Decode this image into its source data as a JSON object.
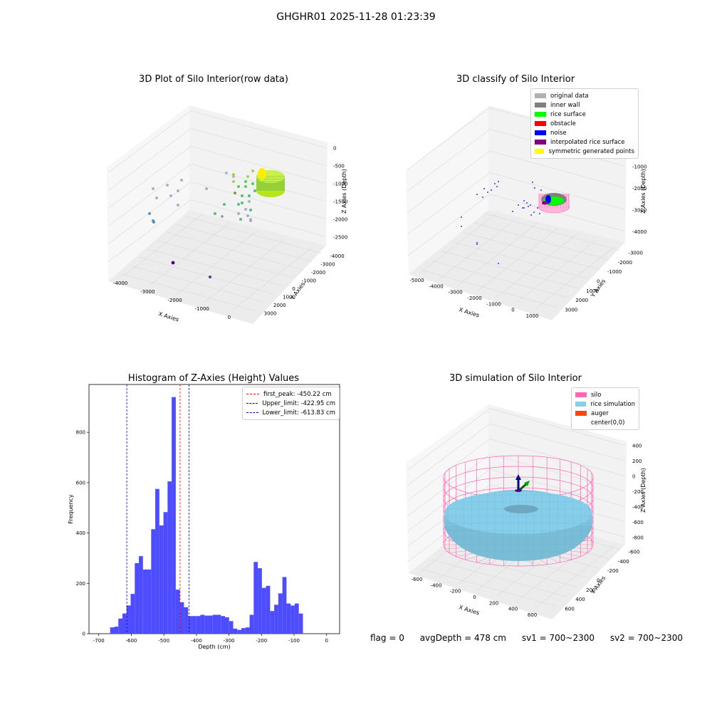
{
  "suptitle": "GHGHR01 2025-11-28 01:23:39",
  "footer": {
    "flag": "flag = 0",
    "avg": "avgDepth = 478 cm",
    "sv1": "sv1 = 700~2300",
    "sv2": "sv2 = 700~2300"
  },
  "colors": {
    "hist_bar": "#4d4dff",
    "peak_line": "#ff0000",
    "limit_line": "#0000cc",
    "silo": "#ff69b4",
    "rice": "#87ceeb",
    "auger": "#ff4500"
  },
  "chart_data": [
    {
      "type": "scatter",
      "title": "3D Plot of Silo Interior(row data)",
      "xlabel": "X Axies",
      "ylabel": "Y Axies",
      "zlabel": "Z Axies (Depth)",
      "xticks": [
        "-4000",
        "-3000",
        "-2000",
        "-1000",
        "0"
      ],
      "yticks": [
        "3000",
        "2000",
        "1000",
        "0",
        "-1000",
        "-2000",
        "-3000",
        "-4000"
      ],
      "zticks": [
        "0",
        "-500",
        "-1000",
        "-1500",
        "-2000",
        "-2500"
      ]
    },
    {
      "type": "scatter",
      "title": "3D classify of Silo Interior",
      "xlabel": "X Axies",
      "ylabel": "Y Axies",
      "zlabel": "Z Axies (Depth)",
      "xticks": [
        "-5000",
        "-4000",
        "-3000",
        "-2000",
        "-1000",
        "0",
        "1000"
      ],
      "yticks": [
        "3000",
        "2000",
        "1000",
        "0",
        "-1000",
        "-2000",
        "-3000"
      ],
      "zticks": [
        "1000",
        "0",
        "-1000",
        "-2000",
        "-3000",
        "-4000"
      ],
      "zticks_visible": [
        "0",
        "-1000",
        "-2000",
        "-3000",
        "-4000"
      ],
      "legend": [
        {
          "label": "original data",
          "color": "#b0b0b0"
        },
        {
          "label": "inner wall",
          "color": "#808080"
        },
        {
          "label": "rice surface",
          "color": "#00ff00"
        },
        {
          "label": "obstacle",
          "color": "#ff0000"
        },
        {
          "label": "noise",
          "color": "#0000ff"
        },
        {
          "label": "interpolated rice surface",
          "color": "#800080"
        },
        {
          "label": "symmetric generated points",
          "color": "#ffff00"
        }
      ]
    },
    {
      "type": "bar",
      "title": "Histogram of Z-Axies (Height) Values",
      "xlabel": "Depth (cm)",
      "ylabel": "Frequency",
      "xlim": [
        -730,
        40
      ],
      "ylim": [
        0,
        990
      ],
      "xticks": [
        -700,
        -600,
        -500,
        -400,
        -300,
        -200,
        -100,
        0
      ],
      "yticks": [
        0,
        200,
        400,
        600,
        800
      ],
      "bin_width": 12.6,
      "bin_start": -665,
      "values": [
        25,
        28,
        60,
        80,
        112,
        158,
        280,
        308,
        255,
        255,
        415,
        575,
        430,
        483,
        605,
        940,
        175,
        125,
        105,
        70,
        70,
        70,
        75,
        72,
        72,
        75,
        75,
        70,
        65,
        50,
        20,
        15,
        22,
        25,
        75,
        285,
        260,
        182,
        190,
        90,
        115,
        160,
        225,
        120,
        112,
        120,
        80
      ],
      "vlines": [
        {
          "label": "first_peak: -450.22 cm",
          "x": -450.22,
          "color": "#ff0000"
        },
        {
          "label": "Upper_limit: -422.95 cm",
          "x": -422.95,
          "color": "#0000cc"
        },
        {
          "label": "Lower_limit: -613.83 cm",
          "x": -613.83,
          "color": "#0000cc"
        }
      ]
    },
    {
      "type": "scatter",
      "title": "3D simulation of Silo Interior",
      "xlabel": "X Axies",
      "ylabel": "Y Axies",
      "zlabel": "Z Axies (Depth)",
      "xticks": [
        "-600",
        "-400",
        "-200",
        "0",
        "200",
        "400",
        "600"
      ],
      "yticks": [
        "600",
        "400",
        "200",
        "0",
        "-200",
        "-400",
        "-600"
      ],
      "zticks": [
        "400",
        "200",
        "0",
        "-200",
        "-400",
        "-600",
        "-800"
      ],
      "legend": [
        {
          "label": "silo",
          "color": "#ff69b4"
        },
        {
          "label": "rice simulation",
          "color": "#87ceeb"
        },
        {
          "label": "auger",
          "color": "#ff4500"
        },
        {
          "label": "center(0,0)",
          "color": "#ffffff"
        }
      ]
    }
  ]
}
